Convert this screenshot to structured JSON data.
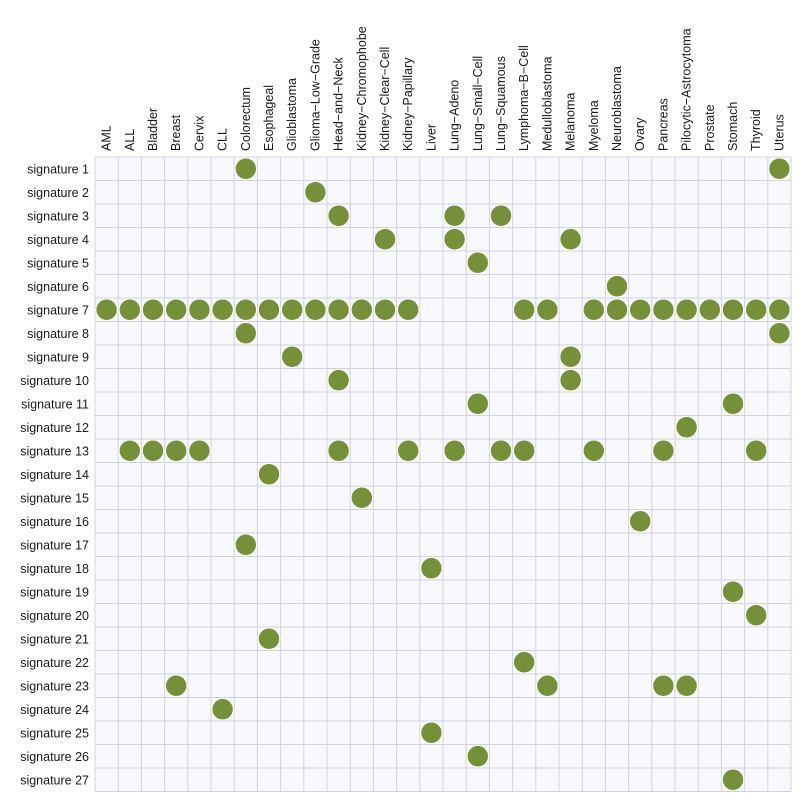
{
  "chart_data": {
    "type": "scatter",
    "title": "",
    "xlabel": "",
    "ylabel": "",
    "dot_color": "#76903a",
    "grid_color": "#d3d3dc",
    "panel_color": "#f8f8ff",
    "grid": true,
    "legend": "none",
    "x_categories": [
      "AML",
      "ALL",
      "Bladder",
      "Breast",
      "Cervix",
      "CLL",
      "Colorectum",
      "Esophageal",
      "Glioblastoma",
      "Glioma−Low−Grade",
      "Head−and−Neck",
      "Kidney−Chromophobe",
      "Kidney−Clear−Cell",
      "Kidney−Papillary",
      "Liver",
      "Lung−Adeno",
      "Lung−Small−Cell",
      "Lung−Squamous",
      "Lymphoma−B−Cell",
      "Medulloblastoma",
      "Melanoma",
      "Myeloma",
      "Neuroblastoma",
      "Ovary",
      "Pancreas",
      "Pilocytic−Astrocytoma",
      "Prostate",
      "Stomach",
      "Thyroid",
      "Uterus"
    ],
    "y_categories": [
      "signature 1",
      "signature 2",
      "signature 3",
      "signature 4",
      "signature 5",
      "signature 6",
      "signature 7",
      "signature 8",
      "signature 9",
      "signature 10",
      "signature 11",
      "signature 12",
      "signature 13",
      "signature 14",
      "signature 15",
      "signature 16",
      "signature 17",
      "signature 18",
      "signature 19",
      "signature 20",
      "signature 21",
      "signature 22",
      "signature 23",
      "signature 24",
      "signature 25",
      "signature 26",
      "signature 27"
    ],
    "points": [
      {
        "signature": "signature 1",
        "cancers": [
          "Colorectum",
          "Uterus"
        ]
      },
      {
        "signature": "signature 2",
        "cancers": [
          "Glioma−Low−Grade"
        ]
      },
      {
        "signature": "signature 3",
        "cancers": [
          "Head−and−Neck",
          "Lung−Adeno",
          "Lung−Squamous"
        ]
      },
      {
        "signature": "signature 4",
        "cancers": [
          "Kidney−Clear−Cell",
          "Lung−Adeno",
          "Melanoma"
        ]
      },
      {
        "signature": "signature 5",
        "cancers": [
          "Lung−Small−Cell"
        ]
      },
      {
        "signature": "signature 6",
        "cancers": [
          "Neuroblastoma"
        ]
      },
      {
        "signature": "signature 7",
        "cancers": [
          "AML",
          "ALL",
          "Bladder",
          "Breast",
          "Cervix",
          "CLL",
          "Colorectum",
          "Esophageal",
          "Glioblastoma",
          "Glioma−Low−Grade",
          "Head−and−Neck",
          "Kidney−Chromophobe",
          "Kidney−Clear−Cell",
          "Kidney−Papillary",
          "Lymphoma−B−Cell",
          "Medulloblastoma",
          "Myeloma",
          "Neuroblastoma",
          "Ovary",
          "Pancreas",
          "Pilocytic−Astrocytoma",
          "Prostate",
          "Stomach",
          "Thyroid",
          "Uterus"
        ]
      },
      {
        "signature": "signature 8",
        "cancers": [
          "Colorectum",
          "Uterus"
        ]
      },
      {
        "signature": "signature 9",
        "cancers": [
          "Glioblastoma",
          "Melanoma"
        ]
      },
      {
        "signature": "signature 10",
        "cancers": [
          "Head−and−Neck",
          "Melanoma"
        ]
      },
      {
        "signature": "signature 11",
        "cancers": [
          "Lung−Small−Cell",
          "Stomach"
        ]
      },
      {
        "signature": "signature 12",
        "cancers": [
          "Pilocytic−Astrocytoma"
        ]
      },
      {
        "signature": "signature 13",
        "cancers": [
          "ALL",
          "Bladder",
          "Breast",
          "Cervix",
          "Head−and−Neck",
          "Kidney−Papillary",
          "Lung−Adeno",
          "Lung−Squamous",
          "Lymphoma−B−Cell",
          "Myeloma",
          "Pancreas",
          "Thyroid"
        ]
      },
      {
        "signature": "signature 14",
        "cancers": [
          "Esophageal"
        ]
      },
      {
        "signature": "signature 15",
        "cancers": [
          "Kidney−Chromophobe"
        ]
      },
      {
        "signature": "signature 16",
        "cancers": [
          "Ovary"
        ]
      },
      {
        "signature": "signature 17",
        "cancers": [
          "Colorectum"
        ]
      },
      {
        "signature": "signature 18",
        "cancers": [
          "Liver"
        ]
      },
      {
        "signature": "signature 19",
        "cancers": [
          "Stomach"
        ]
      },
      {
        "signature": "signature 20",
        "cancers": [
          "Thyroid"
        ]
      },
      {
        "signature": "signature 21",
        "cancers": [
          "Esophageal"
        ]
      },
      {
        "signature": "signature 22",
        "cancers": [
          "Lymphoma−B−Cell"
        ]
      },
      {
        "signature": "signature 23",
        "cancers": [
          "Breast",
          "Medulloblastoma",
          "Pancreas",
          "Pilocytic−Astrocytoma"
        ]
      },
      {
        "signature": "signature 24",
        "cancers": [
          "CLL"
        ]
      },
      {
        "signature": "signature 25",
        "cancers": [
          "Liver"
        ]
      },
      {
        "signature": "signature 26",
        "cancers": [
          "Lung−Small−Cell"
        ]
      },
      {
        "signature": "signature 27",
        "cancers": [
          "Stomach"
        ]
      }
    ]
  }
}
